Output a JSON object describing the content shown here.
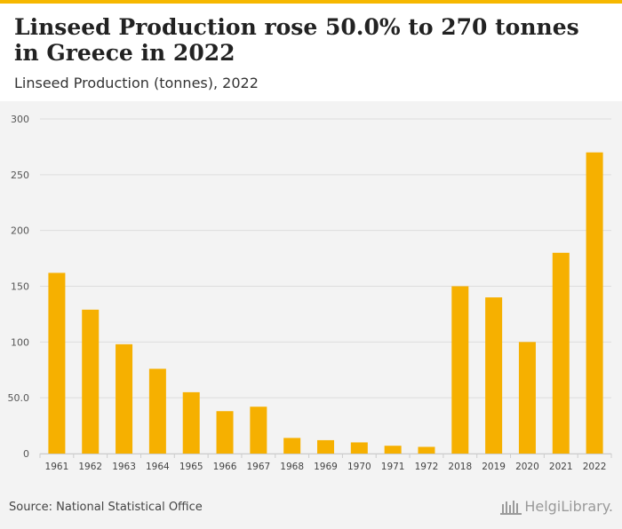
{
  "header": {
    "title": "Linseed Production rose 50.0% to 270 tonnes in Greece in 2022",
    "subtitle": "Linseed Production (tonnes), 2022"
  },
  "footer": {
    "source": "Source: National Statistical Office",
    "logo_text": "HelgiLibrary."
  },
  "colors": {
    "bar": "#f6b000",
    "accent": "#f6b800",
    "grid": "#dddddd"
  },
  "chart_data": {
    "type": "bar",
    "title": "Linseed Production rose 50.0% to 270 tonnes in Greece in 2022",
    "subtitle": "Linseed Production (tonnes), 2022",
    "xlabel": "",
    "ylabel": "",
    "ylim": [
      0,
      300
    ],
    "yticks": [
      0,
      50,
      100,
      150,
      200,
      250,
      300
    ],
    "ytick_labels": [
      "0",
      "50.0",
      "100",
      "150",
      "200",
      "250",
      "300"
    ],
    "grid": true,
    "categories": [
      "1961",
      "1962",
      "1963",
      "1964",
      "1965",
      "1966",
      "1967",
      "1968",
      "1969",
      "1970",
      "1971",
      "1972",
      "2018",
      "2019",
      "2020",
      "2021",
      "2022"
    ],
    "values": [
      162,
      129,
      98,
      76,
      55,
      38,
      42,
      14,
      12,
      10,
      7,
      6,
      150,
      140,
      100,
      180,
      270
    ]
  }
}
